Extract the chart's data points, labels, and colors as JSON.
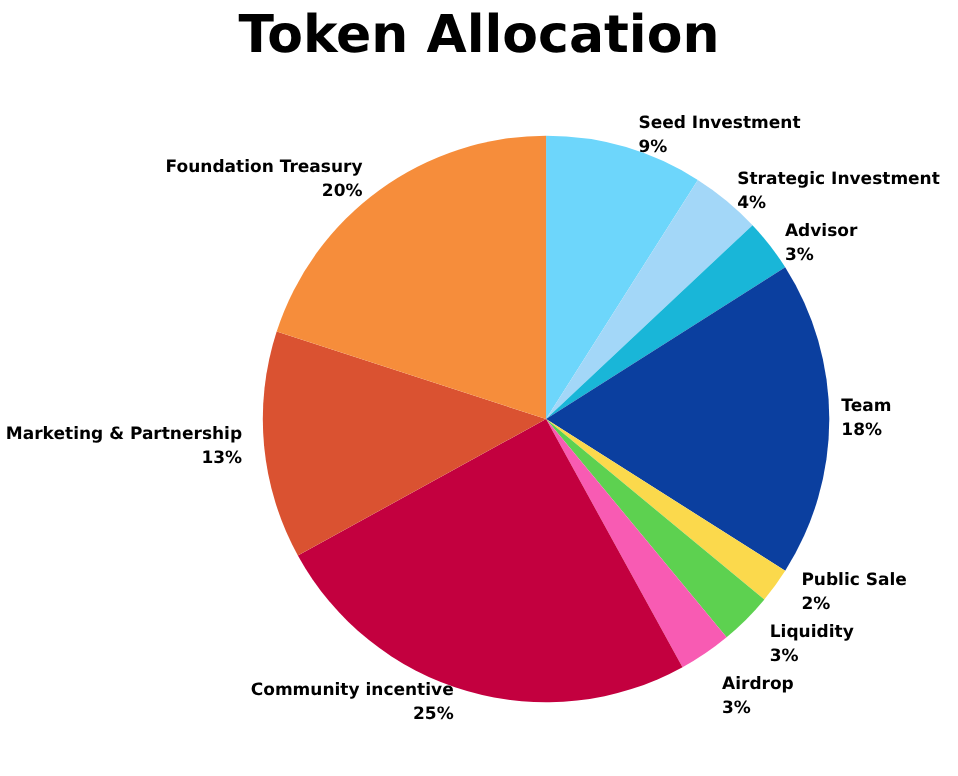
{
  "chart_data": {
    "type": "pie",
    "title": "Token Allocation",
    "categories": [
      "Seed Investment",
      "Strategic Investment",
      "Advisor",
      "Team",
      "Public Sale",
      "Liquidity",
      "Airdrop",
      "Community incentive",
      "Marketing & Partnership",
      "Foundation Treasury"
    ],
    "values": [
      9,
      4,
      3,
      18,
      2,
      3,
      3,
      25,
      13,
      20
    ],
    "value_labels": [
      "9%",
      "4%",
      "3%",
      "18%",
      "2%",
      "3%",
      "3%",
      "25%",
      "13%",
      "20%"
    ],
    "colors": [
      "#6dd6fb",
      "#a3d7f8",
      "#19b6d8",
      "#0b3f9f",
      "#fbd94c",
      "#5dd150",
      "#f85bb3",
      "#c3003f",
      "#da5231",
      "#f68d3b"
    ],
    "legend": false
  }
}
